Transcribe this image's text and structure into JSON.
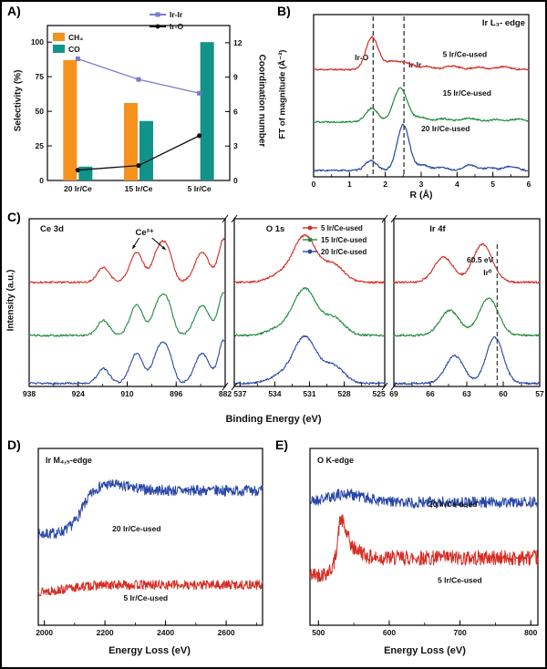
{
  "chart_data": [
    {
      "id": "A",
      "panel_label": "A)",
      "type": "bar+line",
      "categories": [
        "20 Ir/Ce",
        "15 Ir/Ce",
        "5 Ir/Ce"
      ],
      "y_left": {
        "label": "Selectivity (%)",
        "min": 0,
        "max": 112,
        "ticks": [
          0,
          25,
          50,
          75,
          100
        ]
      },
      "y_right": {
        "label": "Coordination number",
        "min": 0,
        "max": 13.5,
        "ticks": [
          0,
          3,
          6,
          9,
          12
        ]
      },
      "bar_series": [
        {
          "name": "CH₄",
          "color": "#F5921E",
          "values": [
            87,
            56,
            0
          ]
        },
        {
          "name": "CO",
          "color": "#12938A",
          "values": [
            10,
            43,
            100
          ]
        }
      ],
      "line_series": [
        {
          "name": "Ir-Ir",
          "color": "#7A7AD0",
          "marker": "square",
          "values": [
            10.6,
            8.8,
            7.6
          ]
        },
        {
          "name": "Ir-O",
          "color": "#111111",
          "marker": "circle",
          "values": [
            0.9,
            1.3,
            3.9
          ]
        }
      ]
    },
    {
      "id": "B",
      "panel_label": "B)",
      "type": "line",
      "title": "Ir L₃- edge",
      "xlabel": "R (Å)",
      "ylabel": "FT of magnitude (Å⁻³)",
      "xlim": [
        0,
        6
      ],
      "xticks": [
        0,
        1,
        2,
        3,
        4,
        5,
        6
      ],
      "ylim": [
        0,
        3.6
      ],
      "ref_lines": [
        {
          "x": 1.66,
          "label": "Ir-O"
        },
        {
          "x": 2.52,
          "label": "Ir-Ir"
        }
      ],
      "series": [
        {
          "name": "5 Ir/Ce-used",
          "color": "#D62B22",
          "offset": 2.38,
          "noise": 0.018,
          "seed": 11,
          "peaks": [
            {
              "c": 1.63,
              "h": 0.72,
              "w": 0.17
            },
            {
              "c": 2.2,
              "h": 0.18,
              "w": 0.22
            },
            {
              "c": 2.62,
              "h": 0.12,
              "w": 0.18
            },
            {
              "c": 3.15,
              "h": 0.07,
              "w": 0.18
            },
            {
              "c": 3.85,
              "h": 0.08,
              "w": 0.2
            },
            {
              "c": 4.6,
              "h": 0.05,
              "w": 0.2
            },
            {
              "c": 5.3,
              "h": 0.06,
              "w": 0.2
            }
          ]
        },
        {
          "name": "15 Ir/Ce-used",
          "color": "#1E8B3C",
          "offset": 1.22,
          "noise": 0.018,
          "seed": 22,
          "peaks": [
            {
              "c": 1.62,
              "h": 0.3,
              "w": 0.17
            },
            {
              "c": 2.42,
              "h": 0.75,
              "w": 0.19
            },
            {
              "c": 3.0,
              "h": 0.1,
              "w": 0.18
            },
            {
              "c": 3.6,
              "h": 0.07,
              "w": 0.2
            },
            {
              "c": 4.35,
              "h": 0.08,
              "w": 0.22
            },
            {
              "c": 5.1,
              "h": 0.05,
              "w": 0.2
            },
            {
              "c": 5.7,
              "h": 0.06,
              "w": 0.18
            }
          ]
        },
        {
          "name": "20 Ir/Ce-used",
          "color": "#2847A6",
          "offset": 0.14,
          "noise": 0.018,
          "seed": 33,
          "peaks": [
            {
              "c": 1.6,
              "h": 0.22,
              "w": 0.16
            },
            {
              "c": 2.5,
              "h": 1.02,
              "w": 0.17
            },
            {
              "c": 3.05,
              "h": 0.12,
              "w": 0.16
            },
            {
              "c": 3.55,
              "h": 0.07,
              "w": 0.18
            },
            {
              "c": 4.35,
              "h": 0.13,
              "w": 0.16
            },
            {
              "c": 4.9,
              "h": 0.06,
              "w": 0.18
            },
            {
              "c": 5.5,
              "h": 0.09,
              "w": 0.18
            }
          ]
        }
      ],
      "series_labels": [
        {
          "text": "5 Ir/Ce-used",
          "fx": 0.6,
          "fy": 0.26
        },
        {
          "text": "15 Ir/Ce-used",
          "fx": 0.6,
          "fy": 0.5
        },
        {
          "text": "20 Ir/Ce-used",
          "fx": 0.5,
          "fy": 0.72
        }
      ]
    },
    {
      "id": "C",
      "panel_label": "C)",
      "type": "line",
      "ylabel": "Intensity (a.u.)",
      "xlabel": "Binding Energy (eV)",
      "ylim": [
        0,
        3.35
      ],
      "legend": [
        {
          "name": "5 Ir/Ce-used",
          "color": "#D62B22"
        },
        {
          "name": "15 Ir/Ce-used",
          "color": "#1E8B3C"
        },
        {
          "name": "20 Ir/Ce-used",
          "color": "#2847A6"
        }
      ],
      "subpanels": [
        {
          "title": "Ce 3d",
          "xlim": [
            938,
            882
          ],
          "xticks": [
            938,
            924,
            910,
            896,
            882
          ],
          "minor": 7,
          "annotation": {
            "text": "Ce³⁺",
            "label_x": 905,
            "targets": [
              908.5,
              899.0
            ]
          },
          "offsets": [
            2.08,
            1.02,
            0.06
          ],
          "noise": 0.02,
          "peaks": [
            {
              "c": 916.8,
              "h": 0.3,
              "w": 1.7
            },
            {
              "c": 907.3,
              "h": 0.6,
              "w": 1.9
            },
            {
              "c": 900.9,
              "h": 0.66,
              "w": 1.8
            },
            {
              "c": 898.2,
              "h": 0.48,
              "w": 1.5
            },
            {
              "c": 888.6,
              "h": 0.6,
              "w": 2.1
            },
            {
              "c": 882.4,
              "h": 0.86,
              "w": 1.5
            }
          ]
        },
        {
          "title": "O 1s",
          "xlim": [
            537.5,
            524.5
          ],
          "xticks": [
            537,
            534,
            531,
            528,
            525
          ],
          "minor": 1.5,
          "offsets": [
            2.08,
            1.02,
            0.06
          ],
          "noise": 0.02,
          "peaks": [
            {
              "c": 533.6,
              "h": 0.14,
              "w": 1.0
            },
            {
              "c": 531.4,
              "h": 0.92,
              "w": 1.0
            },
            {
              "c": 528.9,
              "h": 0.34,
              "w": 0.9
            }
          ]
        },
        {
          "title": "Ir 4f",
          "xlim": [
            69,
            57
          ],
          "xticks": [
            69,
            66,
            63,
            60,
            57
          ],
          "minor": 1.5,
          "ref_line": {
            "x": 60.5,
            "label": "60.5 eV",
            "sublabel": "Ir⁰"
          },
          "offsets": [
            2.08,
            1.02,
            0.06
          ],
          "noise": 0.02,
          "series_peaks": [
            [
              {
                "c": 64.9,
                "h": 0.5,
                "w": 0.8
              },
              {
                "c": 61.7,
                "h": 0.76,
                "w": 0.8
              }
            ],
            [
              {
                "c": 64.4,
                "h": 0.5,
                "w": 0.8
              },
              {
                "c": 61.2,
                "h": 0.74,
                "w": 0.8
              }
            ],
            [
              {
                "c": 64.0,
                "h": 0.55,
                "w": 0.75
              },
              {
                "c": 60.7,
                "h": 0.92,
                "w": 0.7
              }
            ]
          ]
        }
      ]
    },
    {
      "id": "D",
      "panel_label": "D)",
      "type": "line",
      "title": "Ir M₄,₅-edge",
      "xlabel": "Energy Loss (eV)",
      "xlim": [
        1980,
        2720
      ],
      "xticks": [
        2000,
        2200,
        2400,
        2600
      ],
      "minor_step": 100,
      "ylim": [
        0,
        1.05
      ],
      "series": [
        {
          "name": "20 Ir/Ce-used",
          "color": "#2847A6",
          "baseline": 0.54,
          "noise": 0.032,
          "seed": 7,
          "steps": [
            {
              "c": 2125,
              "h": 0.26,
              "w": 22
            }
          ],
          "peaks": [
            {
              "c": 2200,
              "h": 0.04,
              "w": 70
            }
          ]
        },
        {
          "name": "5 Ir/Ce-used",
          "color": "#D62B22",
          "baseline": 0.2,
          "noise": 0.028,
          "seed": 13,
          "steps": [
            {
              "c": 2090,
              "h": 0.04,
              "w": 35
            }
          ],
          "peaks": []
        }
      ],
      "series_labels": [
        {
          "text": "20 Ir/Ce-used",
          "fx": 0.33,
          "fy": 0.47
        },
        {
          "text": "5 Ir/Ce-used",
          "fx": 0.38,
          "fy": 0.86
        }
      ]
    },
    {
      "id": "E",
      "panel_label": "E)",
      "type": "line",
      "title": "O K-edge",
      "xlabel": "Energy Loss (eV)",
      "xlim": [
        488,
        810
      ],
      "xticks": [
        500,
        600,
        700,
        800
      ],
      "minor_step": 50,
      "ylim": [
        0,
        1.05
      ],
      "series": [
        {
          "name": "20 Ir/Ce-used",
          "color": "#2847A6",
          "baseline": 0.73,
          "noise": 0.034,
          "seed": 21,
          "peaks": [
            {
              "c": 540,
              "h": 0.05,
              "w": 25
            }
          ]
        },
        {
          "name": "5 Ir/Ce-used",
          "color": "#D62B22",
          "baseline": 0.3,
          "noise": 0.045,
          "seed": 42,
          "steps": [
            {
              "c": 521,
              "h": 0.1,
              "w": 5
            }
          ],
          "peaks": [
            {
              "c": 531,
              "h": 0.2,
              "w": 4
            },
            {
              "c": 539,
              "h": 0.11,
              "w": 5
            },
            {
              "c": 553,
              "h": 0.05,
              "w": 9
            }
          ]
        }
      ],
      "series_labels": [
        {
          "text": "20 Ir/Ce-used",
          "fx": 0.52,
          "fy": 0.33
        },
        {
          "text": "5 Ir/Ce-used",
          "fx": 0.56,
          "fy": 0.76
        }
      ]
    }
  ]
}
